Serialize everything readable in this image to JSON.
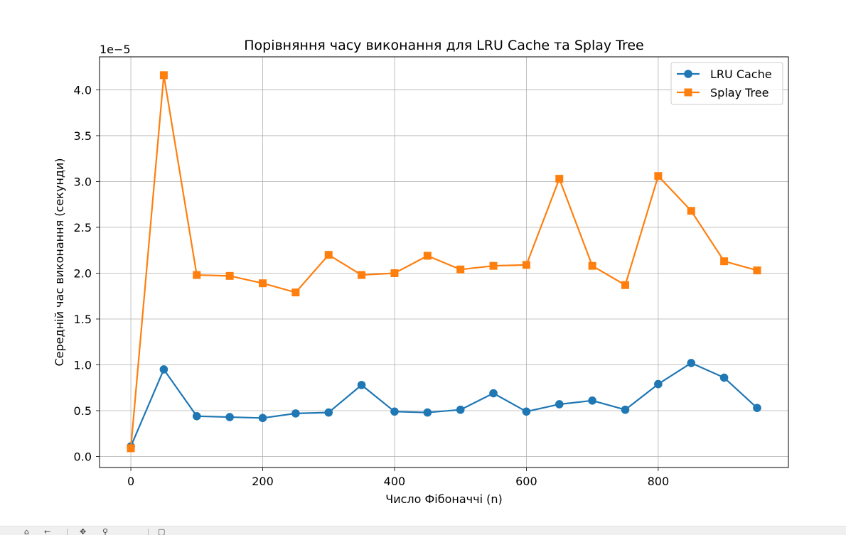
{
  "chart_data": {
    "type": "line",
    "title": "Порівняння часу виконання для LRU Cache та Splay Tree",
    "xlabel": "Число Фібоначчі (n)",
    "ylabel": "Середній час виконання (секунди)",
    "y_offset_label": "1e−5",
    "y_scale": 1e-05,
    "xlim": [
      -47.5,
      997.5
    ],
    "ylim": [
      -0.12,
      4.36
    ],
    "x_ticks": [
      0,
      200,
      400,
      600,
      800
    ],
    "y_ticks": [
      0.0,
      0.5,
      1.0,
      1.5,
      2.0,
      2.5,
      3.0,
      3.5,
      4.0
    ],
    "y_tick_labels": [
      "0.0",
      "0.5",
      "1.0",
      "1.5",
      "2.0",
      "2.5",
      "3.0",
      "3.5",
      "4.0"
    ],
    "grid": true,
    "legend_position": "top-right",
    "x": [
      0,
      50,
      100,
      150,
      200,
      250,
      300,
      350,
      400,
      450,
      500,
      550,
      600,
      650,
      700,
      750,
      800,
      850,
      900,
      950
    ],
    "series": [
      {
        "name": "LRU Cache",
        "color": "#1f77b4",
        "marker": "circle",
        "values": [
          0.11,
          0.95,
          0.44,
          0.43,
          0.42,
          0.47,
          0.48,
          0.78,
          0.49,
          0.48,
          0.51,
          0.69,
          0.49,
          0.57,
          0.61,
          0.51,
          0.79,
          1.02,
          0.86,
          0.53
        ]
      },
      {
        "name": "Splay Tree",
        "color": "#ff7f0e",
        "marker": "square",
        "values": [
          0.09,
          4.16,
          1.98,
          1.97,
          1.89,
          1.79,
          2.2,
          1.98,
          2.0,
          2.19,
          2.04,
          2.08,
          2.09,
          3.03,
          2.08,
          1.87,
          3.06,
          2.68,
          2.13,
          2.03
        ]
      }
    ]
  },
  "toolbar": {
    "icons": [
      "home-icon",
      "back-icon",
      "forward-icon",
      "pan-icon",
      "zoom-icon",
      "configure-icon"
    ]
  }
}
